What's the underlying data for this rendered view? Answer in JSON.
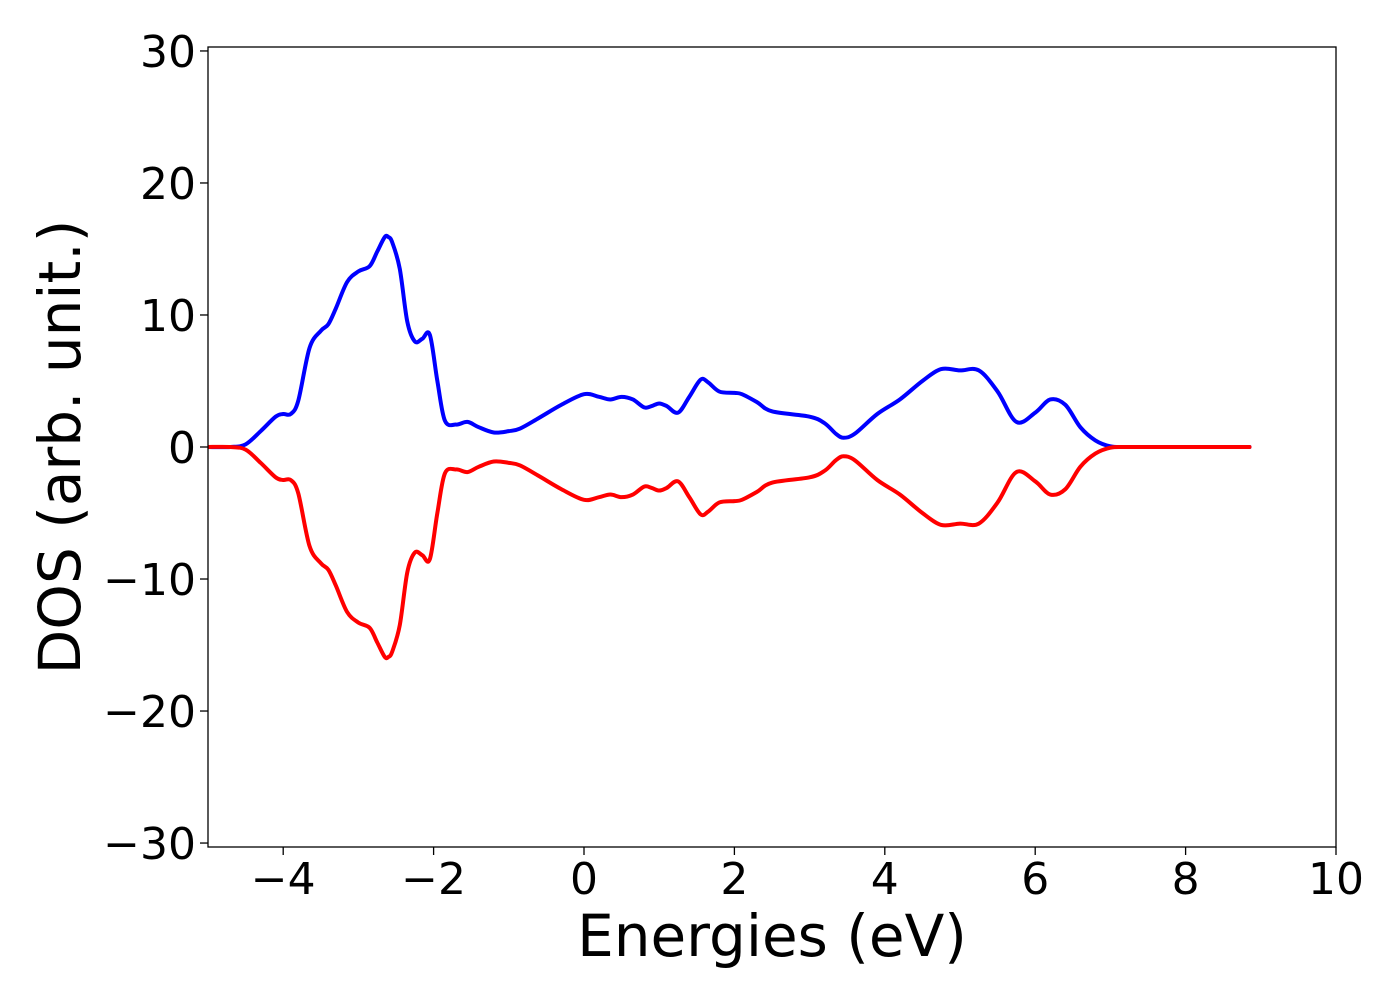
{
  "chart_data": {
    "type": "line",
    "title": "",
    "xlabel": "Energies (eV)",
    "ylabel": "DOS (arb. unit.)",
    "xlim": [
      -5,
      10
    ],
    "ylim": [
      -30.3,
      30.3
    ],
    "xticks": [
      -4,
      -2,
      0,
      2,
      4,
      6,
      8,
      10
    ],
    "xtick_labels": [
      "−4",
      "−2",
      "0",
      "2",
      "4",
      "6",
      "8",
      "10"
    ],
    "yticks": [
      30,
      20,
      10,
      0,
      -10,
      -20,
      -30
    ],
    "ytick_labels": [
      "30",
      "20",
      "10",
      "0",
      "−10",
      "−20",
      "−30"
    ],
    "grid": false,
    "legend": "none",
    "series": [
      {
        "color": "#0000ff",
        "x": [
          -5.0,
          -4.7,
          -4.5,
          -4.3,
          -4.1,
          -4.0,
          -3.9,
          -3.8,
          -3.65,
          -3.5,
          -3.4,
          -3.3,
          -3.15,
          -3.0,
          -2.85,
          -2.75,
          -2.65,
          -2.6,
          -2.55,
          -2.45,
          -2.35,
          -2.25,
          -2.15,
          -2.05,
          -1.95,
          -1.85,
          -1.7,
          -1.55,
          -1.4,
          -1.2,
          -1.0,
          -0.85,
          -0.6,
          -0.3,
          0.0,
          0.2,
          0.35,
          0.5,
          0.65,
          0.8,
          0.9,
          1.0,
          1.1,
          1.25,
          1.4,
          1.55,
          1.65,
          1.8,
          2.0,
          2.1,
          2.3,
          2.5,
          3.0,
          3.2,
          3.35,
          3.45,
          3.6,
          3.9,
          4.2,
          4.5,
          4.75,
          5.0,
          5.25,
          5.5,
          5.75,
          6.0,
          6.2,
          6.4,
          6.6,
          6.8,
          7.0,
          7.2,
          7.5,
          8.0,
          8.5,
          8.85
        ],
        "y": [
          0.0,
          0.0,
          0.2,
          1.2,
          2.3,
          2.5,
          2.5,
          3.5,
          7.5,
          8.8,
          9.3,
          10.5,
          12.5,
          13.3,
          13.7,
          14.8,
          15.9,
          15.9,
          15.5,
          13.5,
          9.5,
          8.0,
          8.2,
          8.5,
          5.0,
          2.0,
          1.7,
          1.9,
          1.5,
          1.1,
          1.2,
          1.4,
          2.2,
          3.2,
          4.0,
          3.8,
          3.6,
          3.8,
          3.6,
          3.0,
          3.1,
          3.3,
          3.1,
          2.6,
          3.8,
          5.1,
          4.9,
          4.2,
          4.1,
          4.0,
          3.4,
          2.7,
          2.3,
          1.8,
          1.0,
          0.7,
          1.0,
          2.5,
          3.6,
          5.0,
          5.9,
          5.8,
          5.8,
          4.2,
          1.9,
          2.6,
          3.6,
          3.2,
          1.5,
          0.5,
          0.05,
          0.0,
          0.0,
          0.0,
          0.0,
          0.0
        ]
      },
      {
        "color": "#ff0000",
        "x": [
          -5.0,
          -4.7,
          -4.5,
          -4.3,
          -4.1,
          -4.0,
          -3.9,
          -3.8,
          -3.65,
          -3.5,
          -3.4,
          -3.3,
          -3.15,
          -3.0,
          -2.85,
          -2.75,
          -2.65,
          -2.6,
          -2.55,
          -2.45,
          -2.35,
          -2.25,
          -2.15,
          -2.05,
          -1.95,
          -1.85,
          -1.7,
          -1.55,
          -1.4,
          -1.2,
          -1.0,
          -0.85,
          -0.6,
          -0.3,
          0.0,
          0.2,
          0.35,
          0.5,
          0.65,
          0.8,
          0.9,
          1.0,
          1.1,
          1.25,
          1.4,
          1.55,
          1.65,
          1.8,
          2.0,
          2.1,
          2.3,
          2.5,
          3.0,
          3.2,
          3.35,
          3.45,
          3.6,
          3.9,
          4.2,
          4.5,
          4.75,
          5.0,
          5.25,
          5.5,
          5.75,
          6.0,
          6.2,
          6.4,
          6.6,
          6.8,
          7.0,
          7.2,
          7.5,
          8.0,
          8.5,
          8.85
        ],
        "y": [
          0.0,
          0.0,
          -0.2,
          -1.2,
          -2.3,
          -2.5,
          -2.5,
          -3.5,
          -7.5,
          -8.8,
          -9.3,
          -10.5,
          -12.5,
          -13.3,
          -13.7,
          -14.8,
          -15.9,
          -15.9,
          -15.5,
          -13.5,
          -9.5,
          -8.0,
          -8.2,
          -8.5,
          -5.0,
          -2.0,
          -1.7,
          -1.9,
          -1.5,
          -1.1,
          -1.2,
          -1.4,
          -2.2,
          -3.2,
          -4.0,
          -3.8,
          -3.6,
          -3.8,
          -3.6,
          -3.0,
          -3.1,
          -3.3,
          -3.1,
          -2.6,
          -3.8,
          -5.1,
          -4.9,
          -4.2,
          -4.1,
          -4.0,
          -3.4,
          -2.7,
          -2.3,
          -1.8,
          -1.0,
          -0.7,
          -1.0,
          -2.5,
          -3.6,
          -5.0,
          -5.9,
          -5.8,
          -5.8,
          -4.2,
          -1.9,
          -2.6,
          -3.6,
          -3.2,
          -1.5,
          -0.5,
          -0.05,
          0.0,
          0.0,
          0.0,
          0.0,
          0.0
        ]
      }
    ]
  }
}
